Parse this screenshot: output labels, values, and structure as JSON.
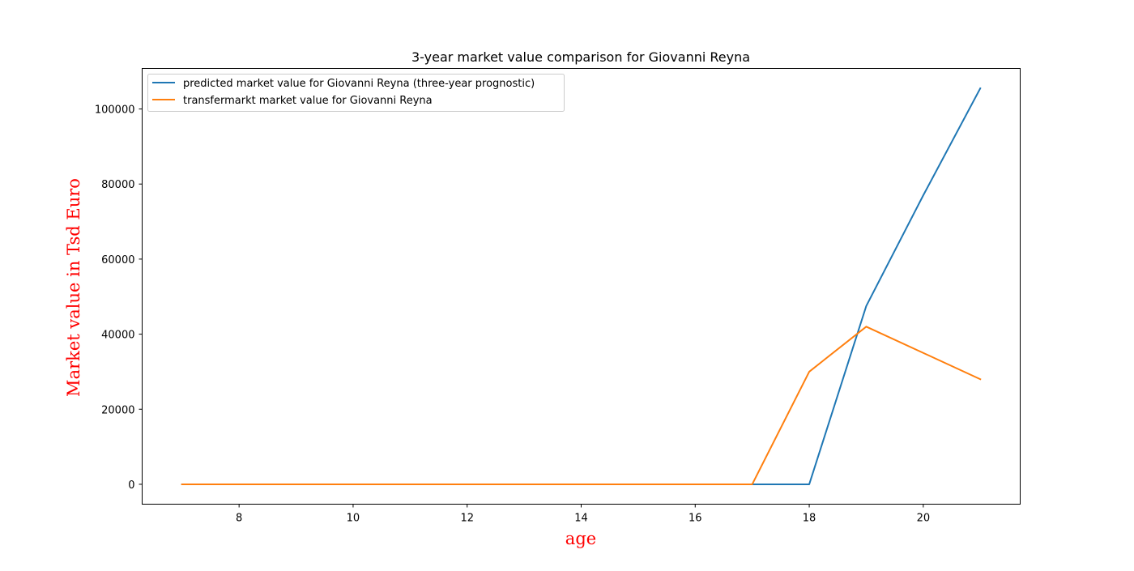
{
  "chart_data": {
    "type": "line",
    "title": "3-year market value comparison for Giovanni Reyna",
    "xlabel": "age",
    "ylabel": "Market value in Tsd Euro",
    "x": [
      7,
      8,
      9,
      10,
      11,
      12,
      13,
      14,
      15,
      16,
      17,
      18,
      19,
      20,
      21
    ],
    "series": [
      {
        "name": "predicted market value for Giovanni Reyna (three-year prognostic)",
        "color": "#1f77b4",
        "values": [
          0,
          0,
          0,
          0,
          0,
          0,
          0,
          0,
          0,
          0,
          0,
          0,
          47500,
          77000,
          105500
        ]
      },
      {
        "name": "transfermarkt market value for Giovanni Reyna",
        "color": "#ff7f0e",
        "values": [
          0,
          0,
          0,
          0,
          0,
          0,
          0,
          0,
          0,
          0,
          0,
          30000,
          42000,
          35000,
          28000
        ]
      }
    ],
    "xlim": [
      6.3,
      21.7
    ],
    "ylim": [
      -5300,
      110800
    ],
    "xticks": [
      8,
      10,
      12,
      14,
      16,
      18,
      20
    ],
    "yticks": [
      0,
      20000,
      40000,
      60000,
      80000,
      100000
    ],
    "grid": false,
    "legend_position": "top-left",
    "label_color": "#ff0000"
  }
}
